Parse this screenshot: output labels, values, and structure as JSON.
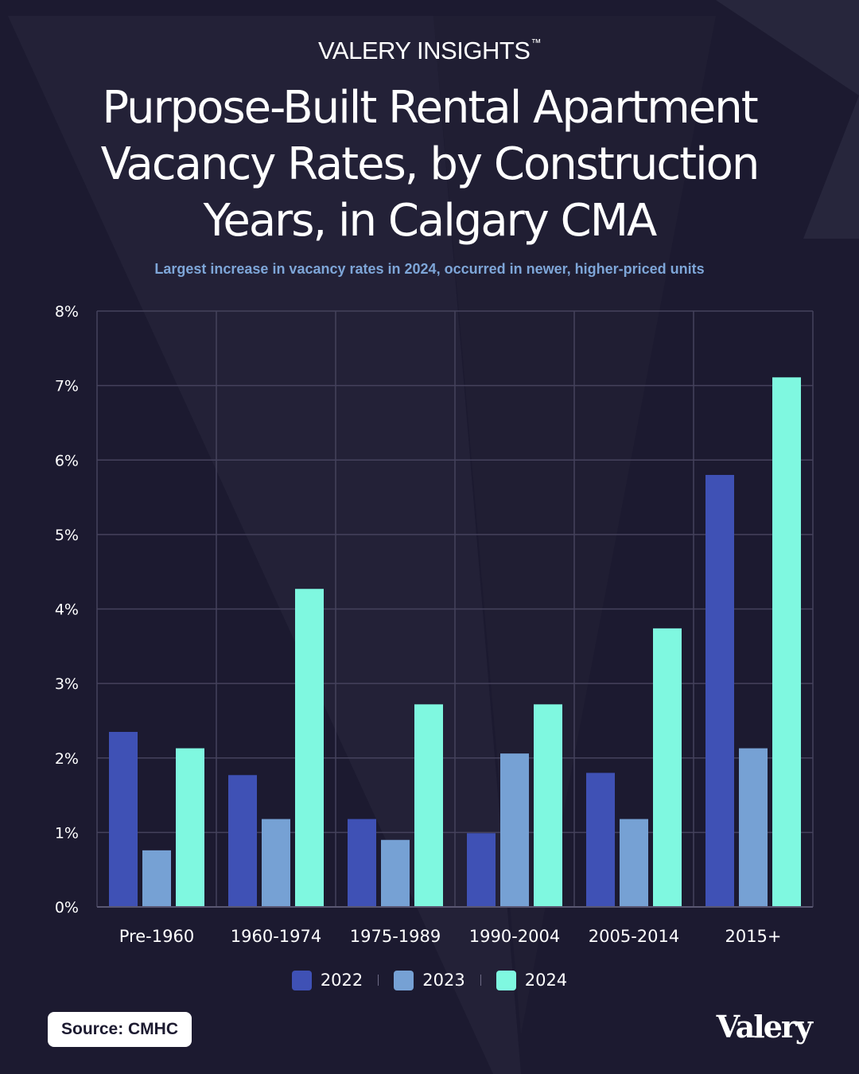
{
  "header": {
    "brand": "VALERY INSIGHTS",
    "brand_mark": "™",
    "title_lines": [
      "Purpose-Built Rental Apartment",
      "Vacancy Rates, by Construction",
      "Years, in Calgary CMA"
    ],
    "subtitle": "Largest increase in vacancy rates in 2024, occurred in newer, higher-priced units"
  },
  "chart_data": {
    "type": "bar",
    "title": "Purpose-Built Rental Apartment Vacancy Rates, by Construction Years, in Calgary CMA",
    "subtitle": "Largest increase in vacancy rates in 2024, occurred in newer, higher-priced units",
    "categories": [
      "Pre-1960",
      "1960-1974",
      "1975-1989",
      "1990-2004",
      "2005-2014",
      "2015+"
    ],
    "series": [
      {
        "name": "2022",
        "color": "#3f51b5",
        "values": [
          2.35,
          1.77,
          1.18,
          0.99,
          1.8,
          5.8
        ]
      },
      {
        "name": "2023",
        "color": "#76a1d4",
        "values": [
          0.76,
          1.18,
          0.9,
          2.06,
          1.18,
          2.13
        ]
      },
      {
        "name": "2024",
        "color": "#7ff8e0",
        "values": [
          2.13,
          4.27,
          2.72,
          2.72,
          3.74,
          7.11
        ]
      }
    ],
    "ylim": [
      0,
      8
    ],
    "yticks": [
      "0%",
      "1%",
      "2%",
      "3%",
      "4%",
      "5%",
      "6%",
      "7%",
      "8%"
    ],
    "grid": true,
    "legend_position": "bottom-center",
    "xlabel": "",
    "ylabel": ""
  },
  "footer": {
    "source_label": "Source: CMHC",
    "logo_text": "Valery"
  }
}
